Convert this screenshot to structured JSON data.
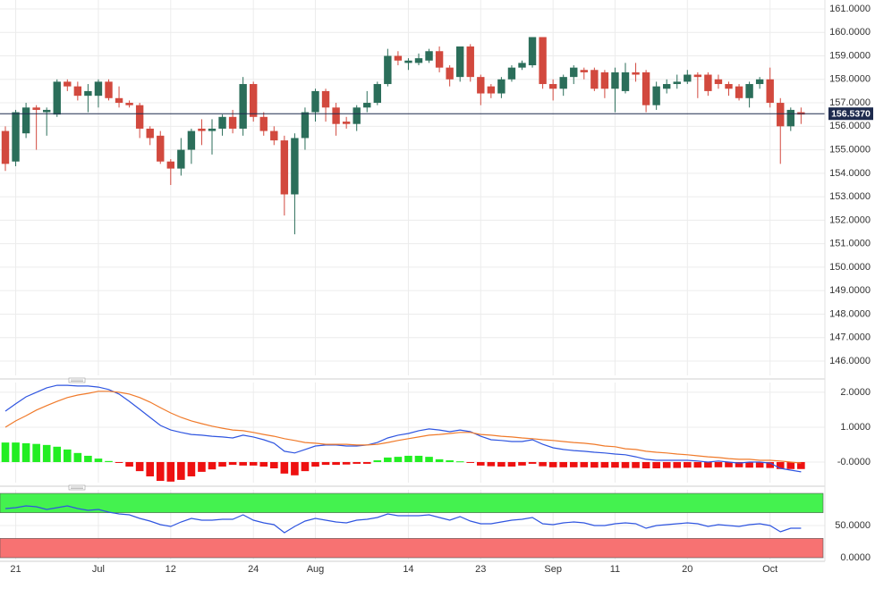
{
  "chart_data": [
    {
      "type": "candlestick",
      "categories": [
        null,
        "21",
        null,
        null,
        null,
        null,
        null,
        null,
        null,
        "Jul",
        null,
        null,
        null,
        null,
        null,
        null,
        "12",
        null,
        null,
        null,
        null,
        null,
        null,
        null,
        "24",
        null,
        null,
        null,
        null,
        null,
        "Aug",
        null,
        null,
        null,
        null,
        null,
        null,
        null,
        null,
        "14",
        null,
        null,
        null,
        null,
        null,
        null,
        "23",
        null,
        null,
        null,
        null,
        null,
        null,
        "Sep",
        null,
        null,
        null,
        null,
        null,
        "11",
        null,
        null,
        null,
        null,
        null,
        null,
        "20",
        null,
        null,
        null,
        null,
        null,
        null,
        null,
        "Oct",
        null,
        null,
        null
      ],
      "open": [
        155.8,
        154.5,
        155.7,
        156.8,
        156.6,
        156.5,
        157.9,
        157.7,
        157.3,
        157.3,
        157.9,
        157.2,
        157.0,
        156.9,
        155.9,
        155.6,
        154.5,
        154.2,
        155.0,
        155.9,
        155.8,
        155.9,
        156.4,
        155.9,
        157.8,
        156.4,
        155.8,
        155.4,
        153.1,
        155.5,
        156.6,
        157.5,
        156.8,
        156.2,
        156.1,
        156.8,
        157.0,
        157.8,
        159.0,
        158.7,
        158.7,
        158.8,
        159.2,
        158.5,
        158.1,
        159.4,
        158.1,
        157.7,
        157.4,
        158.0,
        158.5,
        158.6,
        159.8,
        157.8,
        157.6,
        158.1,
        158.4,
        158.4,
        158.3,
        157.6,
        157.5,
        158.3,
        158.3,
        156.9,
        157.6,
        157.8,
        157.9,
        158.2,
        158.2,
        158.0,
        157.8,
        157.7,
        157.2,
        157.8,
        158.0,
        157.0,
        156.0,
        156.6
      ],
      "high": [
        156.0,
        156.7,
        157.0,
        156.9,
        156.8,
        158.0,
        158.0,
        157.9,
        157.8,
        158.0,
        158.0,
        157.7,
        157.1,
        157.0,
        156.0,
        155.8,
        154.6,
        155.5,
        155.9,
        156.3,
        156.3,
        156.5,
        156.7,
        158.1,
        157.9,
        156.6,
        156.0,
        155.6,
        155.7,
        156.8,
        157.6,
        157.6,
        157.0,
        156.4,
        156.9,
        157.5,
        157.9,
        159.3,
        159.2,
        158.9,
        159.1,
        159.3,
        159.4,
        158.6,
        159.4,
        159.5,
        158.2,
        157.8,
        158.1,
        158.6,
        158.8,
        159.8,
        159.8,
        158.0,
        158.2,
        158.6,
        158.5,
        158.5,
        158.4,
        158.5,
        158.7,
        158.7,
        158.4,
        157.9,
        158.0,
        158.2,
        158.4,
        158.3,
        158.3,
        158.2,
        157.9,
        157.8,
        157.9,
        158.1,
        158.5,
        157.2,
        156.8,
        156.8
      ],
      "low": [
        154.1,
        154.3,
        155.5,
        155.0,
        155.6,
        156.4,
        157.5,
        157.1,
        156.6,
        156.8,
        157.1,
        156.8,
        156.8,
        155.5,
        155.2,
        154.4,
        153.5,
        153.9,
        154.4,
        155.2,
        154.8,
        155.6,
        155.7,
        155.6,
        156.2,
        155.6,
        155.2,
        152.2,
        151.4,
        155.0,
        156.2,
        156.2,
        155.6,
        155.9,
        155.8,
        156.6,
        156.9,
        157.7,
        158.6,
        158.4,
        158.6,
        158.7,
        158.3,
        157.7,
        157.9,
        157.9,
        156.9,
        157.2,
        157.2,
        157.9,
        158.4,
        158.5,
        157.6,
        157.1,
        157.3,
        157.8,
        158.0,
        157.5,
        157.2,
        156.6,
        157.4,
        157.9,
        156.6,
        156.7,
        157.4,
        157.6,
        157.8,
        157.2,
        157.3,
        157.6,
        157.3,
        157.1,
        156.8,
        157.6,
        156.8,
        154.4,
        155.8,
        156.1
      ],
      "close": [
        154.4,
        156.6,
        156.8,
        156.7,
        156.7,
        157.9,
        157.7,
        157.3,
        157.5,
        157.9,
        157.2,
        157.0,
        156.9,
        155.9,
        155.5,
        154.5,
        154.2,
        155.0,
        155.8,
        155.8,
        155.9,
        156.4,
        155.9,
        157.8,
        156.4,
        155.8,
        155.4,
        153.1,
        155.5,
        156.6,
        157.5,
        156.8,
        156.1,
        156.1,
        156.8,
        157.0,
        157.8,
        159.0,
        158.8,
        158.8,
        158.9,
        159.2,
        158.5,
        158.0,
        159.4,
        158.1,
        157.4,
        157.4,
        158.0,
        158.5,
        158.7,
        159.8,
        157.8,
        157.6,
        158.1,
        158.5,
        158.3,
        157.6,
        157.6,
        158.3,
        158.3,
        158.2,
        156.9,
        157.7,
        157.8,
        157.9,
        158.2,
        158.1,
        157.5,
        157.8,
        157.6,
        157.2,
        157.8,
        158.0,
        157.0,
        156.0,
        156.7,
        156.5
      ],
      "up_color": "#2b6e5a",
      "down_color": "#d2493e",
      "ylim": [
        145.39,
        161.38
      ],
      "yticks": [
        {
          "value": 146,
          "label": "146.0000"
        },
        {
          "value": 147,
          "label": "147.0000"
        },
        {
          "value": 148,
          "label": "148.0000"
        },
        {
          "value": 149,
          "label": "149.0000"
        },
        {
          "value": 150,
          "label": "150.0000"
        },
        {
          "value": 151,
          "label": "151.0000"
        },
        {
          "value": 152,
          "label": "152.0000"
        },
        {
          "value": 153,
          "label": "153.0000"
        },
        {
          "value": 154,
          "label": "154.0000"
        },
        {
          "value": 155,
          "label": "155.0000"
        },
        {
          "value": 156,
          "label": "156.0000"
        },
        {
          "value": 157,
          "label": "157.0000"
        },
        {
          "value": 158,
          "label": "158.0000"
        },
        {
          "value": 159,
          "label": "159.0000"
        },
        {
          "value": 160,
          "label": "160.0000"
        },
        {
          "value": 161,
          "label": "161.0000"
        }
      ],
      "last_price": {
        "value": 156.537,
        "label": "156.5370"
      },
      "last_price_color": "#1e2b4e",
      "grid": true
    },
    {
      "type": "macd",
      "series": [
        {
          "color": "#2f55e0",
          "values": [
            1.46,
            1.67,
            1.87,
            2.0,
            2.13,
            2.2,
            2.2,
            2.18,
            2.18,
            2.15,
            2.08,
            1.95,
            1.74,
            1.51,
            1.28,
            1.05,
            0.92,
            0.85,
            0.79,
            0.77,
            0.74,
            0.72,
            0.69,
            0.77,
            0.72,
            0.64,
            0.54,
            0.31,
            0.26,
            0.36,
            0.46,
            0.49,
            0.49,
            0.46,
            0.46,
            0.49,
            0.56,
            0.69,
            0.77,
            0.82,
            0.9,
            0.95,
            0.92,
            0.87,
            0.92,
            0.87,
            0.74,
            0.64,
            0.62,
            0.59,
            0.59,
            0.64,
            0.51,
            0.41,
            0.36,
            0.33,
            0.31,
            0.28,
            0.26,
            0.23,
            0.21,
            0.15,
            0.08,
            0.05,
            0.05,
            0.05,
            0.05,
            0.03,
            0,
            0.03,
            0,
            -0.03,
            0,
            0,
            -0.03,
            -0.18,
            -0.23,
            -0.28
          ]
        },
        {
          "color": "#f07a2a",
          "values": [
            1.0,
            1.18,
            1.33,
            1.49,
            1.62,
            1.74,
            1.85,
            1.92,
            1.97,
            2.03,
            2.03,
            2.0,
            1.95,
            1.85,
            1.72,
            1.56,
            1.41,
            1.28,
            1.18,
            1.1,
            1.03,
            0.97,
            0.92,
            0.9,
            0.85,
            0.79,
            0.74,
            0.67,
            0.62,
            0.56,
            0.54,
            0.51,
            0.51,
            0.51,
            0.49,
            0.49,
            0.51,
            0.56,
            0.62,
            0.67,
            0.72,
            0.77,
            0.79,
            0.82,
            0.85,
            0.85,
            0.79,
            0.77,
            0.74,
            0.72,
            0.69,
            0.67,
            0.64,
            0.62,
            0.59,
            0.56,
            0.54,
            0.51,
            0.46,
            0.44,
            0.38,
            0.36,
            0.31,
            0.28,
            0.26,
            0.23,
            0.21,
            0.18,
            0.15,
            0.13,
            0.1,
            0.08,
            0.08,
            0.05,
            0.05,
            0.03,
            0,
            -0.03
          ]
        }
      ],
      "histogram": [
        0.56,
        0.56,
        0.54,
        0.52,
        0.49,
        0.44,
        0.36,
        0.26,
        0.18,
        0.1,
        0.03,
        -0.01,
        -0.13,
        -0.26,
        -0.41,
        -0.54,
        -0.56,
        -0.51,
        -0.41,
        -0.28,
        -0.21,
        -0.13,
        -0.08,
        -0.1,
        -0.1,
        -0.13,
        -0.18,
        -0.33,
        -0.38,
        -0.26,
        -0.13,
        -0.08,
        -0.08,
        -0.07,
        -0.05,
        -0.05,
        0.05,
        0.13,
        0.15,
        0.18,
        0.18,
        0.15,
        0.08,
        0.05,
        0.02,
        -0.01,
        -0.1,
        -0.12,
        -0.13,
        -0.13,
        -0.1,
        -0.05,
        -0.12,
        -0.15,
        -0.15,
        -0.15,
        -0.15,
        -0.16,
        -0.16,
        -0.16,
        -0.17,
        -0.17,
        -0.18,
        -0.18,
        -0.17,
        -0.17,
        -0.16,
        -0.16,
        -0.16,
        -0.15,
        -0.15,
        -0.15,
        -0.16,
        -0.16,
        -0.17,
        -0.2,
        -0.2,
        -0.2
      ],
      "up_color": "#22ee22",
      "down_color": "#ee1111",
      "ylim": [
        -0.59,
        2.28
      ],
      "yticks": [
        {
          "value": 0,
          "label": "-0.0000"
        },
        {
          "value": 1,
          "label": "1.0000"
        },
        {
          "value": 2,
          "label": "2.0000"
        }
      ],
      "grid": true
    },
    {
      "type": "line",
      "series": [
        {
          "color": "#2f55e0",
          "values": [
            76.4,
            77.8,
            80.6,
            79.2,
            75.0,
            77.8,
            80.6,
            76.4,
            73.6,
            75.0,
            70.8,
            68.1,
            66.7,
            61.1,
            56.9,
            51.4,
            48.6,
            55.6,
            61.1,
            58.3,
            58.3,
            59.7,
            59.7,
            66.7,
            58.3,
            54.2,
            51.4,
            38.9,
            48.6,
            56.9,
            61.1,
            58.3,
            55.6,
            54.2,
            58.3,
            59.7,
            62.5,
            68.1,
            65.3,
            65.3,
            65.3,
            66.7,
            62.5,
            58.3,
            63.9,
            56.9,
            52.8,
            52.8,
            55.6,
            58.3,
            59.7,
            62.5,
            52.8,
            51.4,
            54.2,
            55.6,
            54.2,
            50.0,
            50.0,
            52.8,
            54.2,
            52.8,
            45.8,
            50.0,
            51.4,
            52.8,
            54.2,
            52.8,
            48.6,
            51.4,
            50.0,
            48.6,
            51.4,
            52.8,
            50.0,
            40.3,
            45.8,
            45.8
          ]
        }
      ],
      "bands": [
        {
          "range": [
            70,
            100
          ],
          "color": "#44f24f"
        },
        {
          "range": [
            0,
            30
          ],
          "color": "#f77272"
        }
      ],
      "ylim": [
        -2.8,
        105.6
      ],
      "yticks": [
        {
          "value": 0,
          "label": "0.0000"
        },
        {
          "value": 50,
          "label": "50.0000"
        }
      ],
      "grid": true
    }
  ]
}
